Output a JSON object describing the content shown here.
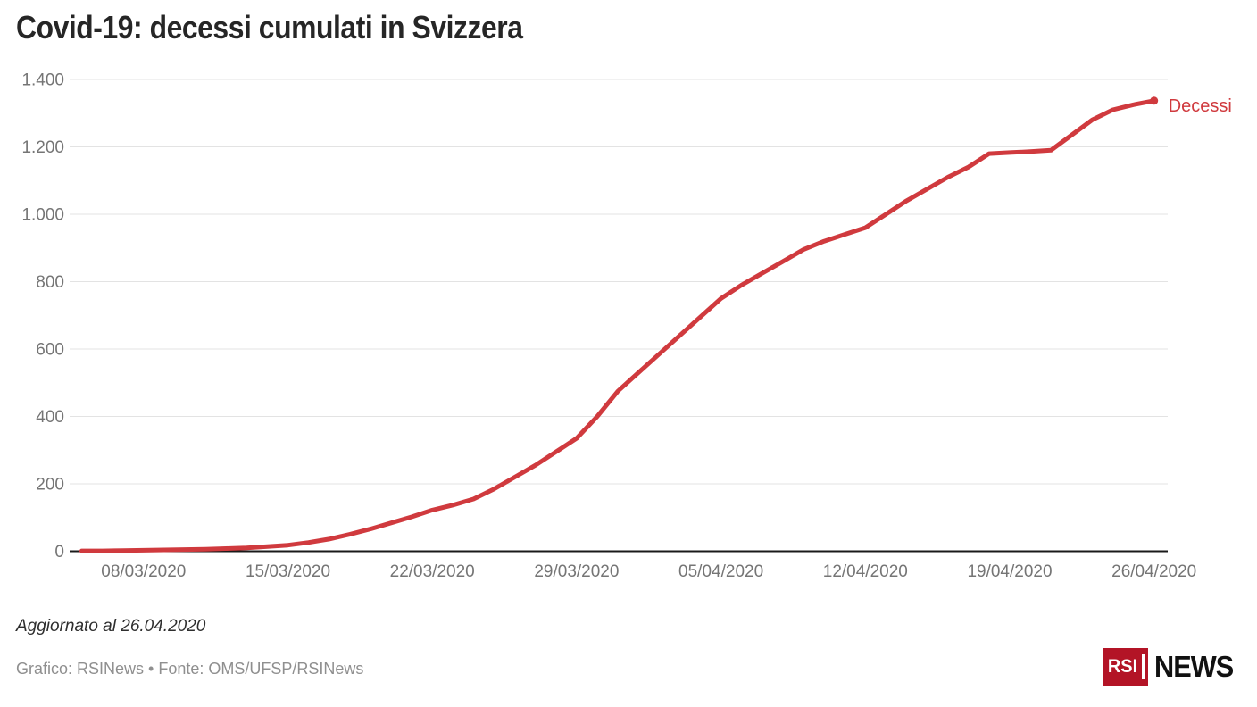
{
  "header": {
    "title": "Covid-19: decessi cumulati in Svizzera"
  },
  "chart_data": {
    "type": "line",
    "title": "Covid-19: decessi cumulati in Svizzera",
    "series_label": "Decessi",
    "line_color": "#d03a3e",
    "x": [
      "05/03/2020",
      "06/03/2020",
      "07/03/2020",
      "08/03/2020",
      "09/03/2020",
      "10/03/2020",
      "11/03/2020",
      "12/03/2020",
      "13/03/2020",
      "14/03/2020",
      "15/03/2020",
      "16/03/2020",
      "17/03/2020",
      "18/03/2020",
      "19/03/2020",
      "20/03/2020",
      "21/03/2020",
      "22/03/2020",
      "23/03/2020",
      "24/03/2020",
      "25/03/2020",
      "26/03/2020",
      "27/03/2020",
      "28/03/2020",
      "29/03/2020",
      "30/03/2020",
      "31/03/2020",
      "01/04/2020",
      "02/04/2020",
      "03/04/2020",
      "04/04/2020",
      "05/04/2020",
      "06/04/2020",
      "07/04/2020",
      "08/04/2020",
      "09/04/2020",
      "10/04/2020",
      "11/04/2020",
      "12/04/2020",
      "13/04/2020",
      "14/04/2020",
      "15/04/2020",
      "16/04/2020",
      "17/04/2020",
      "18/04/2020",
      "19/04/2020",
      "20/04/2020",
      "21/04/2020",
      "22/04/2020",
      "23/04/2020",
      "24/04/2020",
      "25/04/2020",
      "26/04/2020"
    ],
    "values": [
      1,
      1,
      2,
      3,
      4,
      5,
      6,
      8,
      10,
      14,
      18,
      26,
      36,
      50,
      66,
      84,
      102,
      122,
      137,
      155,
      185,
      220,
      255,
      295,
      335,
      400,
      475,
      530,
      585,
      640,
      695,
      750,
      790,
      825,
      860,
      895,
      920,
      940,
      960,
      1000,
      1040,
      1075,
      1110,
      1140,
      1180,
      1183,
      1186,
      1190,
      1235,
      1280,
      1310,
      1325,
      1337
    ],
    "x_tick_labels": [
      "08/03/2020",
      "15/03/2020",
      "22/03/2020",
      "29/03/2020",
      "05/04/2020",
      "12/04/2020",
      "19/04/2020",
      "26/04/2020"
    ],
    "x_tick_indices": [
      3,
      10,
      17,
      24,
      31,
      38,
      45,
      52
    ],
    "y_tick_values": [
      0,
      200,
      400,
      600,
      800,
      1000,
      1200,
      1400
    ],
    "y_tick_labels": [
      "0",
      "200",
      "400",
      "600",
      "800",
      "1.000",
      "1.200",
      "1.400"
    ],
    "ylim": [
      0,
      1400
    ],
    "grid": "horizontal",
    "legend_position": "end-of-line",
    "colors": {
      "grid_line": "#e3e3e3",
      "axis_line": "#1a1a1a",
      "tick_text": "#757575"
    }
  },
  "footer": {
    "updated_text": "Aggiornato al 26.04.2020",
    "credits_text": "Grafico: RSINews • Fonte: OMS/UFSP/RSINews",
    "logo": {
      "text_primary": "RSI",
      "text_secondary": "NEWS",
      "box_color": "#b31426"
    }
  }
}
